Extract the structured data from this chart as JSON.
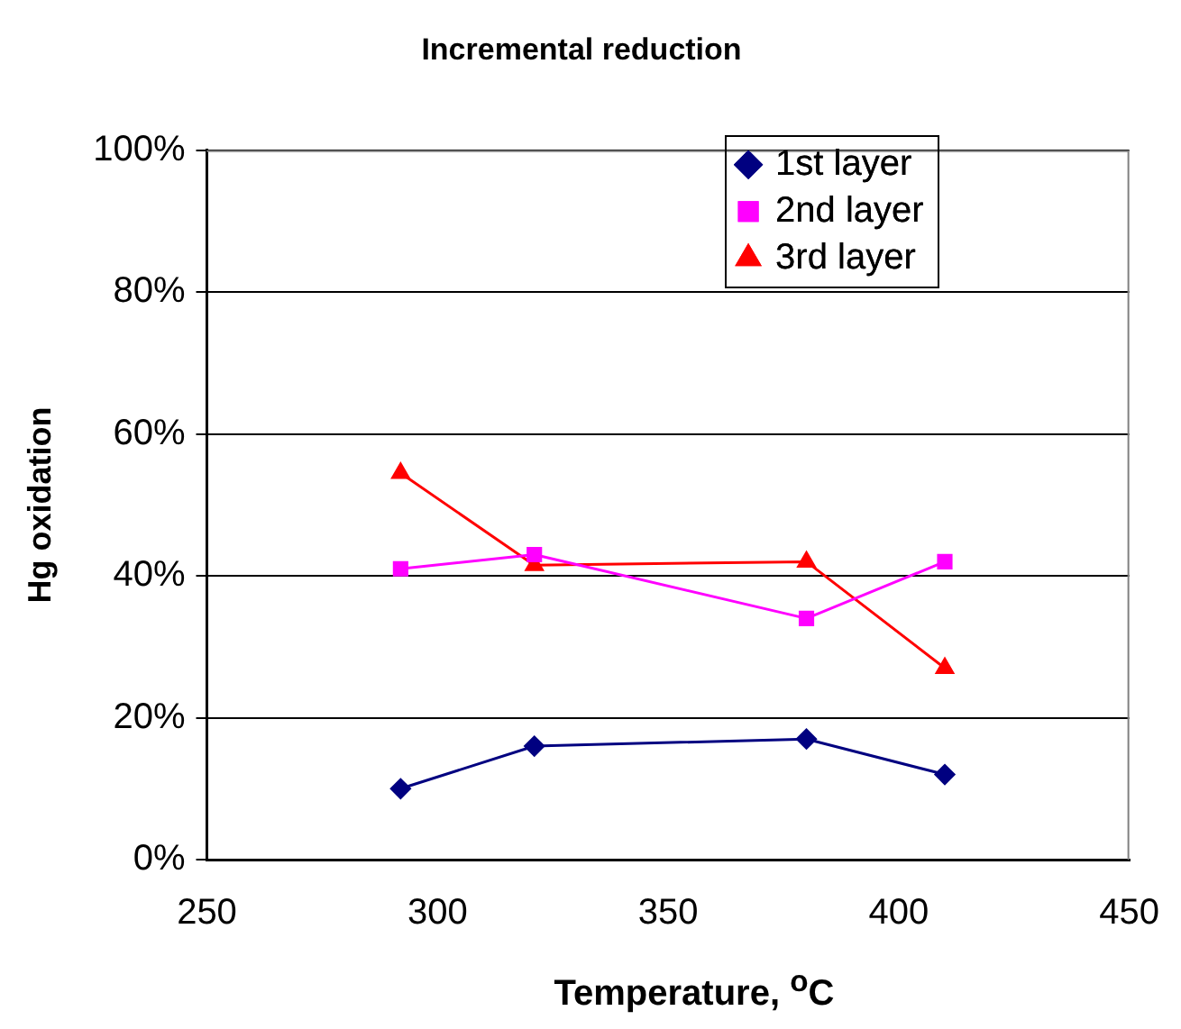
{
  "chart_data": {
    "type": "line",
    "title": "Incremental reduction",
    "xlabel": "Temperature, $^{o}$C",
    "ylabel": "Hg oxidation",
    "xlim": [
      250,
      450
    ],
    "xticks": [
      250,
      300,
      350,
      400,
      450
    ],
    "ylim": [
      0,
      100
    ],
    "yticks": [
      {
        "value": 0,
        "label": "0%"
      },
      {
        "value": 20,
        "label": "20%"
      },
      {
        "value": 40,
        "label": "40%"
      },
      {
        "value": 60,
        "label": "60%"
      },
      {
        "value": 80,
        "label": "80%"
      },
      {
        "value": 100,
        "label": "100%"
      }
    ],
    "x": [
      292,
      321,
      380,
      410
    ],
    "series": [
      {
        "name": "1st layer",
        "color": "#000080",
        "marker": "diamond",
        "values": [
          10,
          16,
          17,
          12
        ]
      },
      {
        "name": "2nd layer",
        "color": "#ff00ff",
        "marker": "square",
        "values": [
          41,
          43,
          34,
          42
        ]
      },
      {
        "name": "3rd layer",
        "color": "#ff0000",
        "marker": "triangle",
        "values": [
          54.5,
          41.5,
          42,
          27
        ]
      }
    ],
    "grid": "y",
    "legend": "top right",
    "line_style": "solid"
  }
}
